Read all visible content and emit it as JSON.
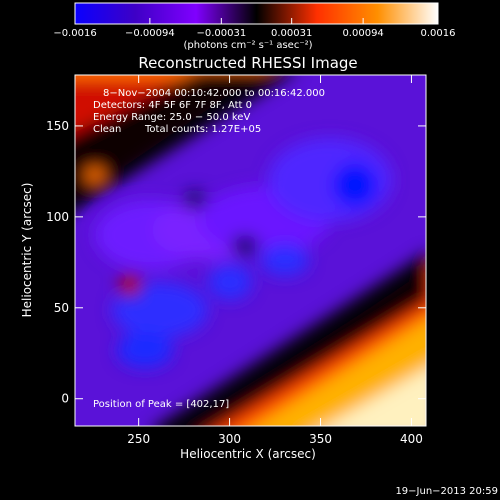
{
  "chart_data": {
    "type": "heatmap",
    "title": "Reconstructed RHESSI Image",
    "xlabel": "Heliocentric X (arcsec)",
    "ylabel": "Heliocentric Y (arcsec)",
    "xlim": [
      215,
      408
    ],
    "ylim": [
      -15,
      178
    ],
    "x_ticks": [
      {
        "value": 250,
        "label": "250"
      },
      {
        "value": 300,
        "label": "300"
      },
      {
        "value": 350,
        "label": "350"
      },
      {
        "value": 400,
        "label": "400"
      }
    ],
    "y_ticks": [
      {
        "value": 0,
        "label": "0"
      },
      {
        "value": 50,
        "label": "50"
      },
      {
        "value": 100,
        "label": "100"
      },
      {
        "value": 150,
        "label": "150"
      }
    ],
    "colorbar": {
      "range": [
        -0.0016,
        0.0016
      ],
      "ticks": [
        {
          "value": -0.0016,
          "label": "−0.0016"
        },
        {
          "value": -0.00094,
          "label": "−0.00094"
        },
        {
          "value": -0.00031,
          "label": "−0.00031"
        },
        {
          "value": 0.00031,
          "label": "0.00031"
        },
        {
          "value": 0.00094,
          "label": "0.00094"
        },
        {
          "value": 0.0016,
          "label": "0.0016"
        }
      ],
      "units_label": "(photons cm⁻² s⁻¹ asec⁻²)",
      "colors": [
        "#0a00ff",
        "#3e00c6",
        "#8000ff",
        "#000000",
        "#ff3000",
        "#ff8f00",
        "#ffffff"
      ]
    },
    "annotations": {
      "time_range": "8−Nov−2004 00:10:42.000 to 00:16:42.000",
      "detectors": "Detectors: 4F 5F 6F 7F 8F, Att 0",
      "energy": "Energy Range: 25.0 − 50.0 keV",
      "clean_label": "Clean",
      "total_counts": "Total counts: 1.27E+05",
      "peak": "Position of Peak = [402,17]"
    },
    "footer_timestamp": "19−Jun−2013 20:59",
    "grid": false,
    "legend": "top"
  }
}
